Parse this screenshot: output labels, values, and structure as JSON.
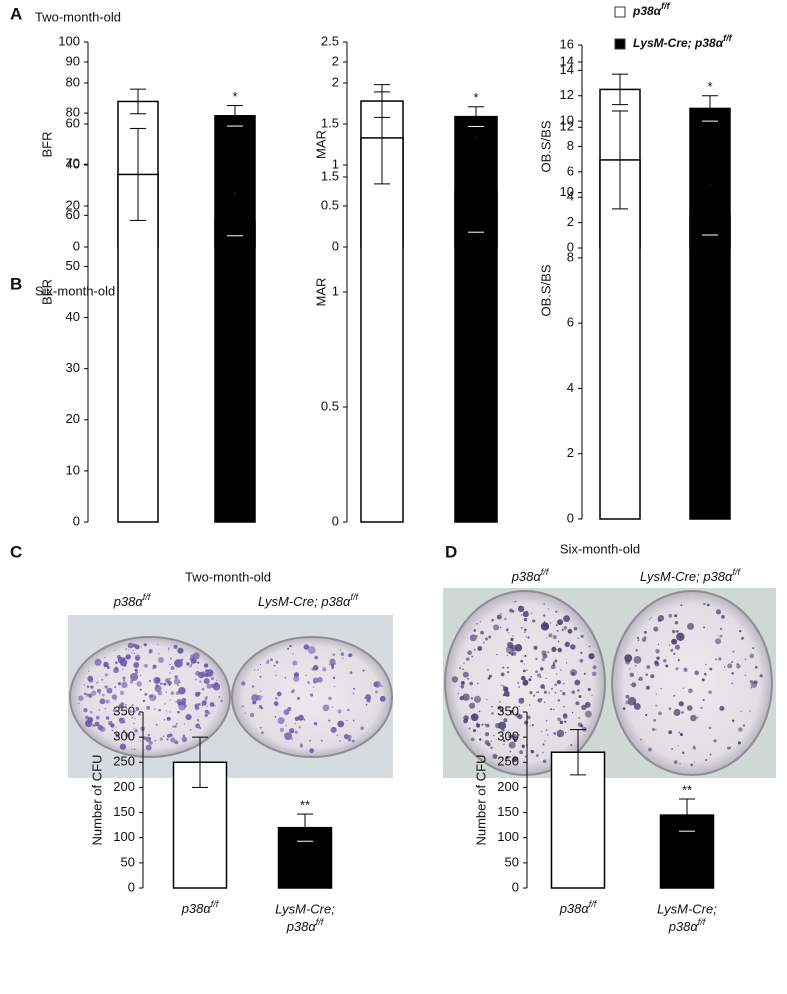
{
  "panels": [
    {
      "letter": "A",
      "title": "Two-month-old"
    },
    {
      "letter": "B",
      "title": "Six-month-old"
    },
    {
      "letter": "C",
      "title": "Two-month-old"
    },
    {
      "letter": "D",
      "title": "Six-month-old"
    }
  ],
  "legend": [
    {
      "label": "p38α",
      "sup": "f/f",
      "color": "#ffffff"
    },
    {
      "label": "LysM-Cre; p38α",
      "sup": "f/f",
      "color": "#000000"
    }
  ],
  "photos": [
    {
      "labels": [
        {
          "text": "p38α",
          "sup": "f/f"
        },
        {
          "text": "LysM-Cre; p38α",
          "sup": "f/f"
        }
      ]
    },
    {
      "labels": [
        {
          "text": "p38α",
          "sup": "f/f"
        },
        {
          "text": "LysM-Cre; p38α",
          "sup": "f/f"
        }
      ]
    }
  ],
  "chart_data": [
    {
      "type": "bar",
      "ylabel": "BFR",
      "ylim": [
        0,
        100
      ],
      "yticks": [
        0,
        20,
        40,
        60,
        80,
        100
      ],
      "values": [
        71,
        64
      ],
      "errors": [
        6,
        5
      ],
      "colors": [
        "#ffffff",
        "#000000"
      ],
      "annotations": [
        {
          "index": 1,
          "text": "*"
        }
      ]
    },
    {
      "type": "bar",
      "ylabel": "MAR",
      "ylim": [
        0,
        2.5
      ],
      "yticks": [
        0,
        0.5,
        1,
        1.5,
        2,
        2.5
      ],
      "values": [
        1.78,
        1.59
      ],
      "errors": [
        0.2,
        0.12
      ],
      "colors": [
        "#ffffff",
        "#000000"
      ],
      "annotations": [
        {
          "index": 1,
          "text": "*"
        }
      ]
    },
    {
      "type": "bar",
      "ylabel": "OB.S/BS",
      "ylim": [
        0,
        16
      ],
      "yticks": [
        0,
        2,
        4,
        6,
        8,
        10,
        12,
        14,
        16
      ],
      "values": [
        12.5,
        11.0
      ],
      "errors": [
        1.2,
        1.0
      ],
      "colors": [
        "#ffffff",
        "#000000"
      ],
      "annotations": [
        {
          "index": 1,
          "text": "*"
        }
      ]
    },
    {
      "type": "bar",
      "ylabel": "BFR",
      "ylim": [
        0,
        90
      ],
      "yticks": [
        0,
        10,
        20,
        30,
        40,
        50,
        60,
        70,
        80,
        90
      ],
      "values": [
        68,
        59
      ],
      "errors": [
        9,
        3
      ],
      "colors": [
        "#ffffff",
        "#000000"
      ],
      "annotations": [
        {
          "index": 1,
          "text": "*"
        }
      ]
    },
    {
      "type": "bar",
      "ylabel": "MAR",
      "ylim": [
        0,
        2
      ],
      "yticks": [
        0,
        0.5,
        1,
        1.5,
        2
      ],
      "values": [
        1.67,
        1.44
      ],
      "errors": [
        0.2,
        0.18
      ],
      "colors": [
        "#ffffff",
        "#000000"
      ],
      "annotations": [
        {
          "index": 1,
          "text": "*"
        }
      ]
    },
    {
      "type": "bar",
      "ylabel": "OB.S/BS",
      "ylim": [
        0,
        14
      ],
      "yticks": [
        0,
        2,
        4,
        6,
        8,
        10,
        12,
        14
      ],
      "values": [
        11,
        9.3
      ],
      "errors": [
        1.5,
        0.6
      ],
      "colors": [
        "#ffffff",
        "#000000"
      ],
      "annotations": [
        {
          "index": 1,
          "text": "*"
        }
      ]
    },
    {
      "type": "bar",
      "ylabel": "Number of CFU",
      "ylim": [
        0,
        350
      ],
      "yticks": [
        0,
        50,
        100,
        150,
        200,
        250,
        300,
        350
      ],
      "values": [
        250,
        120
      ],
      "errors": [
        50,
        27
      ],
      "colors": [
        "#ffffff",
        "#000000"
      ],
      "annotations": [
        {
          "index": 1,
          "text": "**"
        }
      ],
      "categories": [
        {
          "lines": [
            "p38α"
          ],
          "sup": "f/f"
        },
        {
          "lines": [
            "LysM-Cre;",
            "p38α"
          ],
          "sup": "f/f"
        }
      ]
    },
    {
      "type": "bar",
      "ylabel": "Number of CFU",
      "ylim": [
        0,
        350
      ],
      "yticks": [
        0,
        50,
        100,
        150,
        200,
        250,
        300,
        350
      ],
      "values": [
        270,
        145
      ],
      "errors": [
        45,
        32
      ],
      "colors": [
        "#ffffff",
        "#000000"
      ],
      "annotations": [
        {
          "index": 1,
          "text": "**"
        }
      ],
      "categories": [
        {
          "lines": [
            "p38α"
          ],
          "sup": "f/f"
        },
        {
          "lines": [
            "LysM-Cre;",
            "p38α"
          ],
          "sup": "f/f"
        }
      ]
    }
  ]
}
